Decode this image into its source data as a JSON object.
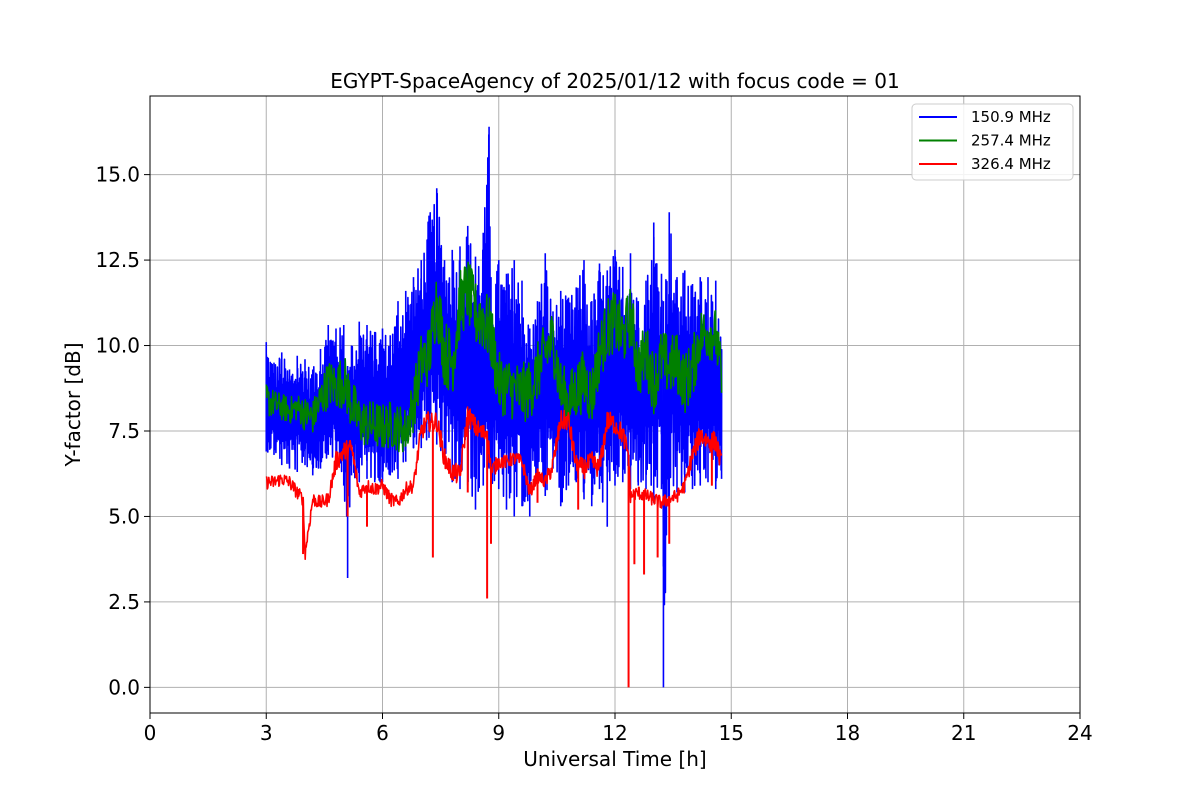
{
  "chart_data": {
    "type": "line",
    "title": "EGYPT-SpaceAgency of 2025/01/12 with focus code = 01",
    "xlabel": "Universal Time [h]",
    "ylabel": "Y-factor [dB]",
    "xlim": [
      0,
      24
    ],
    "ylim": [
      -0.75,
      17.3
    ],
    "xticks": [
      0,
      3,
      6,
      9,
      12,
      15,
      18,
      21,
      24
    ],
    "xtick_labels": [
      "0",
      "3",
      "6",
      "9",
      "12",
      "15",
      "18",
      "21",
      "24"
    ],
    "yticks": [
      0,
      2.5,
      5,
      7.5,
      10,
      12.5,
      15
    ],
    "ytick_labels": [
      "0.0",
      "2.5",
      "5.0",
      "7.5",
      "10.0",
      "12.5",
      "15.0"
    ],
    "grid": true,
    "legend_position": "top-right",
    "series": [
      {
        "name": "150.9 MHz",
        "color": "#0000ff",
        "x": [
          3.0,
          3.2,
          3.4,
          3.6,
          3.8,
          4.0,
          4.2,
          4.4,
          4.6,
          4.8,
          5.0,
          5.1,
          5.2,
          5.4,
          5.6,
          5.8,
          6.0,
          6.2,
          6.4,
          6.6,
          6.8,
          7.0,
          7.2,
          7.4,
          7.6,
          7.8,
          8.0,
          8.2,
          8.4,
          8.6,
          8.75,
          8.8,
          9.0,
          9.2,
          9.4,
          9.6,
          9.8,
          10.0,
          10.2,
          10.4,
          10.6,
          10.8,
          11.0,
          11.2,
          11.4,
          11.6,
          11.8,
          12.0,
          12.2,
          12.4,
          12.6,
          12.8,
          13.0,
          13.2,
          13.25,
          13.4,
          13.6,
          13.8,
          14.0,
          14.2,
          14.4,
          14.6,
          14.75
        ],
        "high": [
          10.1,
          9.5,
          9.8,
          9.3,
          9.7,
          9.6,
          9.3,
          9.9,
          10.6,
          10.5,
          10.6,
          9.4,
          10.0,
          10.7,
          10.6,
          10.4,
          10.5,
          10.3,
          11.3,
          11.6,
          12.0,
          12.5,
          13.8,
          14.6,
          12.5,
          12.8,
          12.9,
          13.5,
          12.6,
          13.3,
          16.4,
          12.0,
          12.5,
          12.1,
          12.5,
          11.9,
          10.5,
          11.3,
          12.7,
          11.0,
          11.6,
          11.4,
          11.7,
          12.5,
          11.3,
          12.4,
          12.2,
          12.8,
          12.3,
          12.7,
          11.3,
          11.9,
          13.6,
          12.1,
          11.3,
          13.9,
          12.0,
          12.2,
          11.8,
          12.0,
          12.0,
          11.9,
          9.9
        ],
        "low": [
          6.9,
          6.8,
          6.5,
          6.4,
          6.3,
          6.5,
          6.2,
          6.4,
          6.8,
          6.5,
          5.9,
          3.2,
          6.2,
          6.0,
          6.1,
          6.0,
          6.0,
          6.2,
          6.1,
          6.6,
          7.0,
          7.0,
          7.3,
          7.1,
          6.7,
          6.0,
          5.8,
          5.9,
          5.2,
          5.9,
          6.4,
          5.6,
          5.8,
          5.2,
          5.0,
          5.3,
          5.0,
          6.1,
          5.6,
          6.4,
          5.3,
          5.9,
          6.0,
          5.5,
          5.3,
          5.8,
          4.7,
          5.9,
          6.0,
          5.8,
          5.9,
          5.8,
          5.4,
          5.8,
          0.0,
          5.6,
          5.7,
          5.7,
          5.8,
          5.9,
          6.0,
          5.8,
          6.1
        ]
      },
      {
        "name": "257.4 MHz",
        "color": "#008000",
        "x": [
          3.0,
          3.2,
          3.4,
          3.6,
          3.8,
          4.0,
          4.2,
          4.4,
          4.6,
          4.8,
          5.0,
          5.2,
          5.4,
          5.6,
          5.8,
          6.0,
          6.2,
          6.4,
          6.6,
          6.8,
          7.0,
          7.2,
          7.4,
          7.6,
          7.8,
          8.0,
          8.2,
          8.4,
          8.6,
          8.8,
          9.0,
          9.2,
          9.4,
          9.6,
          9.8,
          10.0,
          10.2,
          10.4,
          10.6,
          10.8,
          11.0,
          11.2,
          11.4,
          11.6,
          11.8,
          12.0,
          12.2,
          12.4,
          12.6,
          12.8,
          13.0,
          13.2,
          13.4,
          13.6,
          13.8,
          14.0,
          14.2,
          14.4,
          14.6,
          14.75
        ],
        "values": [
          8.4,
          8.3,
          8.2,
          8.1,
          8.2,
          8.0,
          7.9,
          8.4,
          8.9,
          8.8,
          9.0,
          8.3,
          7.8,
          7.7,
          7.7,
          7.6,
          7.7,
          7.6,
          7.5,
          8.3,
          9.5,
          9.7,
          11.4,
          9.8,
          9.5,
          11.2,
          11.6,
          10.9,
          10.8,
          10.3,
          8.9,
          8.8,
          8.7,
          8.6,
          8.7,
          9.2,
          9.8,
          10.2,
          8.7,
          8.3,
          8.7,
          9.0,
          8.5,
          9.8,
          10.5,
          10.7,
          10.2,
          10.9,
          9.3,
          9.8,
          8.9,
          9.6,
          9.4,
          9.5,
          8.9,
          9.3,
          10.3,
          10.4,
          10.3,
          9.0
        ],
        "spread": [
          0.5,
          0.4,
          0.4,
          0.4,
          0.4,
          0.5,
          0.5,
          0.6,
          0.7,
          0.7,
          0.8,
          0.8,
          0.7,
          0.7,
          0.7,
          0.7,
          0.7,
          0.7,
          0.7,
          0.8,
          0.9,
          0.9,
          1.0,
          1.0,
          1.0,
          1.0,
          1.0,
          1.0,
          1.0,
          1.0,
          0.9,
          0.9,
          0.9,
          0.9,
          0.9,
          0.9,
          0.9,
          0.9,
          0.9,
          0.9,
          0.9,
          0.9,
          0.9,
          0.9,
          0.9,
          0.9,
          0.9,
          0.9,
          0.9,
          0.9,
          0.9,
          0.9,
          0.9,
          0.9,
          0.9,
          0.9,
          0.8,
          0.8,
          0.8,
          0.8
        ]
      },
      {
        "name": "326.4 MHz",
        "color": "#ff0000",
        "x": [
          3.0,
          3.2,
          3.4,
          3.6,
          3.8,
          3.95,
          4.0,
          4.2,
          4.4,
          4.6,
          4.8,
          5.0,
          5.2,
          5.4,
          5.6,
          5.8,
          6.0,
          6.2,
          6.4,
          6.6,
          6.8,
          7.0,
          7.2,
          7.3,
          7.4,
          7.6,
          7.8,
          8.0,
          8.2,
          8.4,
          8.6,
          8.7,
          8.8,
          9.0,
          9.2,
          9.4,
          9.6,
          9.8,
          10.0,
          10.2,
          10.4,
          10.6,
          10.8,
          11.0,
          11.2,
          11.4,
          11.6,
          11.8,
          12.0,
          12.2,
          12.35,
          12.4,
          12.6,
          12.8,
          13.0,
          13.2,
          13.4,
          13.6,
          13.8,
          14.0,
          14.2,
          14.4,
          14.6,
          14.75
        ],
        "values": [
          6.0,
          6.0,
          6.1,
          6.0,
          5.7,
          5.5,
          3.9,
          5.5,
          5.4,
          5.5,
          6.6,
          6.9,
          7.0,
          5.7,
          5.9,
          5.8,
          5.9,
          5.5,
          5.4,
          5.8,
          5.9,
          7.5,
          7.8,
          7.7,
          7.8,
          6.7,
          6.3,
          6.2,
          8.0,
          7.6,
          7.4,
          7.5,
          6.3,
          6.6,
          6.6,
          6.7,
          6.6,
          5.7,
          6.2,
          6.0,
          6.5,
          7.8,
          7.8,
          6.5,
          6.4,
          6.6,
          6.4,
          7.8,
          7.7,
          7.4,
          6.8,
          5.6,
          5.7,
          5.6,
          5.5,
          5.4,
          5.5,
          5.6,
          5.9,
          6.8,
          7.4,
          7.2,
          7.2,
          6.5
        ],
        "spread": [
          0.2,
          0.2,
          0.2,
          0.2,
          0.2,
          0.2,
          0.2,
          0.2,
          0.2,
          0.2,
          0.3,
          0.3,
          0.3,
          0.2,
          0.2,
          0.2,
          0.2,
          0.2,
          0.2,
          0.2,
          0.2,
          0.3,
          0.3,
          0.3,
          0.3,
          0.3,
          0.3,
          0.3,
          0.3,
          0.3,
          0.3,
          0.3,
          0.3,
          0.2,
          0.2,
          0.2,
          0.2,
          0.2,
          0.2,
          0.2,
          0.3,
          0.3,
          0.3,
          0.3,
          0.3,
          0.3,
          0.3,
          0.3,
          0.3,
          0.3,
          0.3,
          0.2,
          0.2,
          0.2,
          0.2,
          0.2,
          0.2,
          0.2,
          0.2,
          0.3,
          0.3,
          0.3,
          0.3,
          0.3
        ],
        "dips": [
          [
            3.95,
            3.9
          ],
          [
            5.1,
            5.0
          ],
          [
            5.6,
            4.7
          ],
          [
            7.3,
            3.8
          ],
          [
            8.2,
            5.7
          ],
          [
            8.7,
            2.6
          ],
          [
            8.8,
            4.2
          ],
          [
            10.0,
            5.4
          ],
          [
            11.05,
            5.2
          ],
          [
            12.35,
            0.0
          ],
          [
            12.5,
            3.6
          ],
          [
            12.75,
            3.3
          ],
          [
            13.1,
            3.8
          ],
          [
            13.4,
            4.2
          ],
          [
            14.5,
            5.9
          ]
        ]
      }
    ]
  }
}
